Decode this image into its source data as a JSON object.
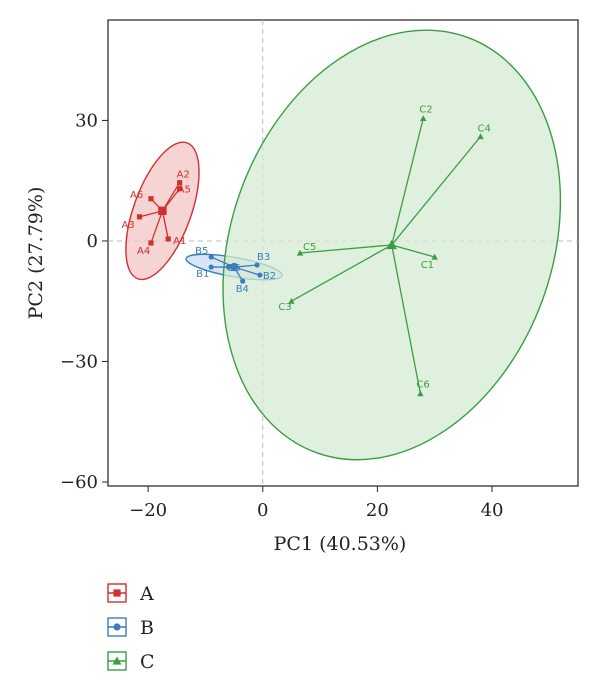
{
  "chart_data": {
    "type": "scatter",
    "title": "",
    "xlabel": "PC1 (40.53%)",
    "ylabel": "PC2 (27.79%)",
    "xlim": [
      -27,
      55
    ],
    "ylim": [
      -61,
      55
    ],
    "xticks": [
      -20,
      0,
      20,
      40
    ],
    "yticks": [
      30,
      0,
      -30,
      -60
    ],
    "xtick_labels": [
      "−20",
      "0",
      "20",
      "40"
    ],
    "ytick_labels": [
      "30",
      "0",
      "−30",
      "−60"
    ],
    "zero_lines": true,
    "grid": false,
    "legend_position": "bottom-left",
    "series": [
      {
        "name": "A",
        "marker": "square",
        "color": "#d0312d",
        "fill": "#f2c6c4",
        "centroid": [
          -17.5,
          7.5
        ],
        "ellipse": {
          "rx": 5,
          "ry": 18,
          "angle_deg": 20
        },
        "points": [
          {
            "label": "A1",
            "x": -16.5,
            "y": 0.5
          },
          {
            "label": "A2",
            "x": -14.5,
            "y": 14.5
          },
          {
            "label": "A3",
            "x": -21.5,
            "y": 6
          },
          {
            "label": "A4",
            "x": -19.5,
            "y": -0.5
          },
          {
            "label": "A5",
            "x": -14.5,
            "y": 13
          },
          {
            "label": "A6",
            "x": -19.5,
            "y": 10.5
          }
        ]
      },
      {
        "name": "B",
        "marker": "circle",
        "color": "#3a7ebf",
        "fill": "#c9ddf0",
        "centroid": [
          -5,
          -6.5
        ],
        "ellipse": {
          "rx": 8.5,
          "ry": 2.4,
          "angle_deg": 10
        },
        "points": [
          {
            "label": "B1",
            "x": -9,
            "y": -6.5
          },
          {
            "label": "B2",
            "x": -0.5,
            "y": -8.5
          },
          {
            "label": "B3",
            "x": -1,
            "y": -6
          },
          {
            "label": "B4",
            "x": -3.5,
            "y": -10
          },
          {
            "label": "B5",
            "x": -9,
            "y": -4
          },
          {
            "label": "B6",
            "x": -6,
            "y": -6.5
          }
        ]
      },
      {
        "name": "C",
        "marker": "triangle",
        "color": "#3c9e43",
        "fill": "#d6ebd3",
        "centroid": [
          22.5,
          -1
        ],
        "ellipse": {
          "rx": 28,
          "ry": 55,
          "angle_deg": 20
        },
        "points": [
          {
            "label": "C1",
            "x": 30,
            "y": -4
          },
          {
            "label": "C2",
            "x": 28,
            "y": 30.5
          },
          {
            "label": "C3",
            "x": 5,
            "y": -15
          },
          {
            "label": "C4",
            "x": 38,
            "y": 26
          },
          {
            "label": "C5",
            "x": 6.5,
            "y": -3
          },
          {
            "label": "C6",
            "x": 27.5,
            "y": -38
          }
        ]
      }
    ]
  }
}
